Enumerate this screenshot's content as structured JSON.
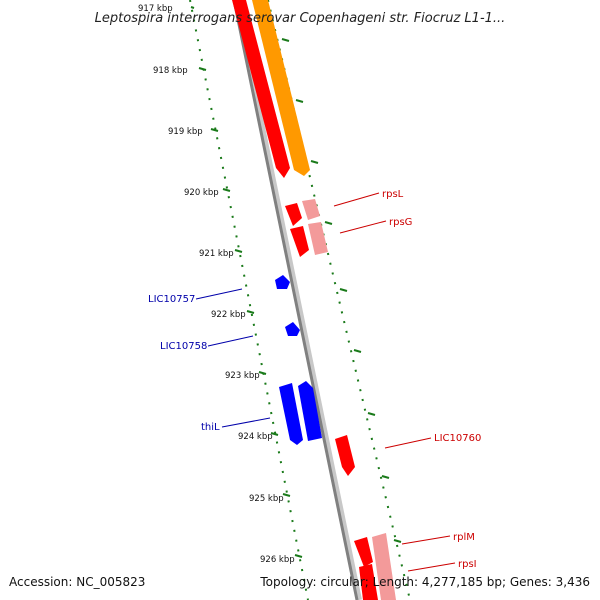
{
  "title": "Leptospira interrogans serovar Copenhageni str. Fiocruz L1-1...",
  "footer": {
    "accession": "Accession: NC_005823",
    "topology": "Topology: circular; Length: 4,277,185 bp; Genes: 3,436"
  },
  "scale_labels": [
    "917 kbp",
    "918 kbp",
    "919 kbp",
    "920 kbp",
    "921 kbp",
    "922 kbp",
    "923 kbp",
    "924 kbp",
    "925 kbp",
    "926 kbp"
  ],
  "gene_labels": [
    {
      "text": "rpsL",
      "strand": "forward"
    },
    {
      "text": "rpsG",
      "strand": "forward"
    },
    {
      "text": "LIC10757",
      "strand": "reverse"
    },
    {
      "text": "LIC10758",
      "strand": "reverse"
    },
    {
      "text": "thiL",
      "strand": "reverse"
    },
    {
      "text": "LIC10760",
      "strand": "forward"
    },
    {
      "text": "rplM",
      "strand": "forward"
    },
    {
      "text": "rpsI",
      "strand": "forward"
    }
  ],
  "colors": {
    "forward_cds": "#ff0000",
    "forward_cds_light": "#f39a9a",
    "reverse_cds": "#0000ff",
    "orange_feature": "#ff9900",
    "backbone": "#808080",
    "scale_ticks": "#1a7a1a",
    "forward_label": "#cc0000",
    "reverse_label": "#0000aa"
  }
}
